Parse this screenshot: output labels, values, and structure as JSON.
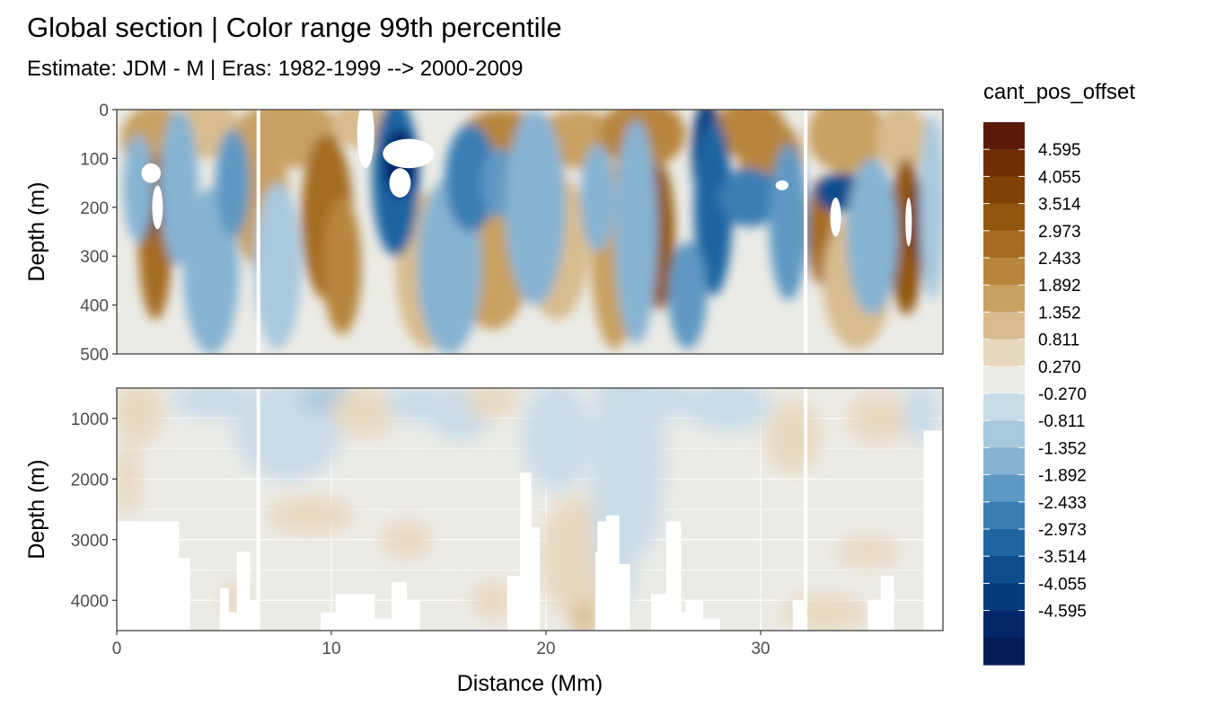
{
  "chart_data": {
    "type": "heatmap",
    "title": "Global section | Color range 99th percentile",
    "subtitle": "Estimate: JDM - M | Eras: 1982-1999 --> 2000-2009",
    "xlabel": "Distance (Mm)",
    "xlim": [
      0,
      38.5
    ],
    "x_ticks": [
      0,
      10,
      20,
      30
    ],
    "panels": [
      {
        "ylabel": "Depth (m)",
        "ylim": [
          0,
          500
        ],
        "y_reversed": true,
        "y_ticks": [
          0,
          100,
          200,
          300,
          400,
          500
        ]
      },
      {
        "ylabel": "Depth (m)",
        "ylim": [
          500,
          4500
        ],
        "y_reversed": true,
        "y_ticks": [
          1000,
          2000,
          3000,
          4000
        ]
      }
    ],
    "legend": {
      "title": "cant_pos_offset",
      "placement": "right",
      "labels": [
        "4.595",
        "4.055",
        "3.514",
        "2.973",
        "2.433",
        "1.892",
        "1.352",
        "0.811",
        "0.270",
        "-0.270",
        "-0.811",
        "-1.352",
        "-1.892",
        "-2.433",
        "-2.973",
        "-3.514",
        "-4.055",
        "-4.595"
      ],
      "colors": [
        "#5a1a0a",
        "#6e2e06",
        "#804306",
        "#93580f",
        "#a56c22",
        "#b8853d",
        "#c8a062",
        "#d8bc8f",
        "#e8d8bf",
        "#ebebe6",
        "#c8dbe8",
        "#a8c8dd",
        "#86b3d2",
        "#5e99c3",
        "#3b7eb4",
        "#1f65a2",
        "#0f4d8e",
        "#073a7a",
        "#06266a",
        "#061a58"
      ]
    },
    "panel_background": "#ebebe6"
  }
}
